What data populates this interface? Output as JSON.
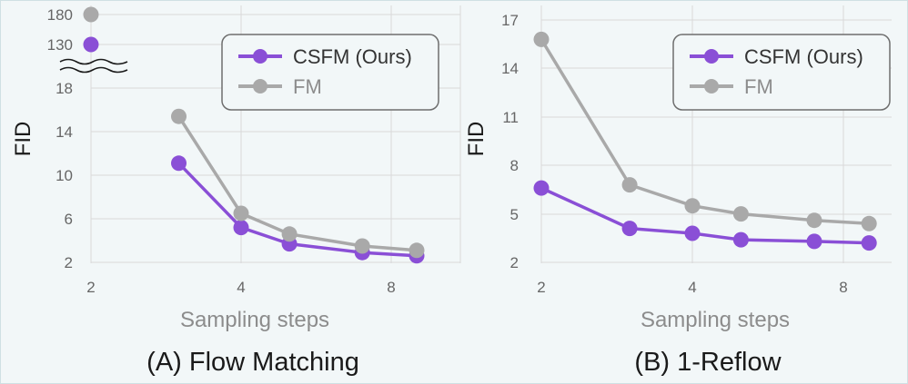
{
  "colors": {
    "csfm": "#8a4fd6",
    "fm": "#a9a9a9",
    "grid": "#d9d9d9",
    "background": "#f2f7f8"
  },
  "chart_data": [
    {
      "type": "line",
      "caption": "(A) Flow Matching",
      "xlabel": "Sampling steps",
      "ylabel": "FID",
      "x_ticks": [
        "2",
        "4",
        "8"
      ],
      "y_ticks": [
        "2",
        "6",
        "10",
        "14",
        "18"
      ],
      "y_ticks_broken": [
        "130",
        "180"
      ],
      "axis_break": true,
      "grid": true,
      "legend_position": "top-right",
      "series": [
        {
          "name": "CSFM (Ours)",
          "x": [
            2,
            3,
            4,
            5,
            7,
            9
          ],
          "y": [
            130,
            11.1,
            5.2,
            3.7,
            2.9,
            2.6
          ]
        },
        {
          "name": "FM",
          "x": [
            2,
            3,
            4,
            5,
            7,
            9
          ],
          "y": [
            180,
            15.4,
            6.5,
            4.6,
            3.5,
            3.1
          ]
        }
      ]
    },
    {
      "type": "line",
      "caption": "(B) 1-Reflow",
      "xlabel": "Sampling steps",
      "ylabel": "FID",
      "x_ticks": [
        "2",
        "4",
        "8"
      ],
      "y_ticks": [
        "2",
        "5",
        "8",
        "11",
        "14",
        "17"
      ],
      "grid": true,
      "legend_position": "top-right",
      "series": [
        {
          "name": "CSFM (Ours)",
          "x": [
            2,
            3,
            4,
            5,
            7,
            9
          ],
          "y": [
            6.6,
            4.1,
            3.8,
            3.4,
            3.3,
            3.2
          ]
        },
        {
          "name": "FM",
          "x": [
            2,
            3,
            4,
            5,
            7,
            9
          ],
          "y": [
            15.8,
            6.8,
            5.5,
            5.0,
            4.6,
            4.4
          ]
        }
      ]
    }
  ]
}
